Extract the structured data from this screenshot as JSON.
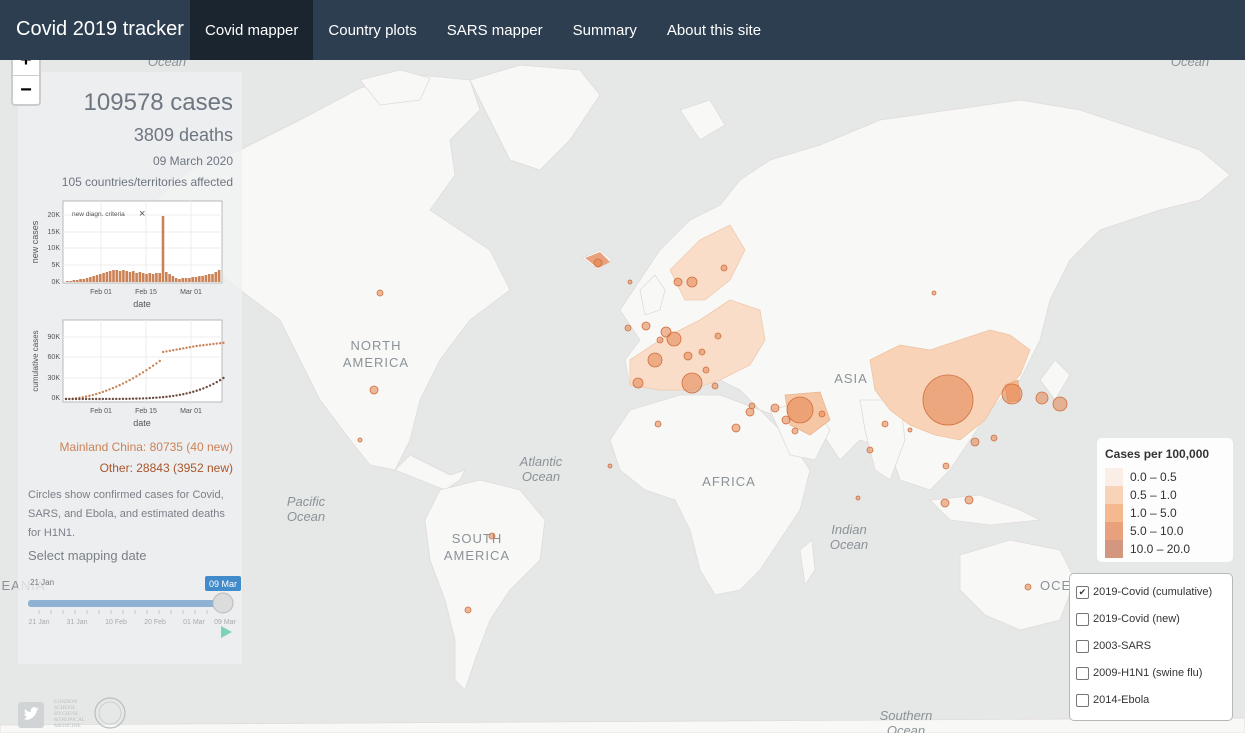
{
  "navbar": {
    "brand": "Covid 2019 tracker",
    "tabs": [
      {
        "label": "Covid mapper",
        "active": true
      },
      {
        "label": "Country plots",
        "active": false
      },
      {
        "label": "SARS mapper",
        "active": false
      },
      {
        "label": "Summary",
        "active": false
      },
      {
        "label": "About this site",
        "active": false
      }
    ]
  },
  "zoom": {
    "in": "+",
    "out": "−"
  },
  "summary": {
    "cases": "109578 cases",
    "deaths": "3809 deaths",
    "date": "09 March 2020",
    "affected": "105 countries/territories affected",
    "china": "Mainland China: 80735 (40 new)",
    "other": "Other: 28843 (3952 new)",
    "description": "Circles show confirmed cases for Covid, SARS, and Ebola, and estimated deaths for H1N1.",
    "select_label": "Select mapping date"
  },
  "new_cases_plot": {
    "annotation": "new diagn. criteria",
    "ylabel": "new cases",
    "xlabel": "date",
    "yticks": [
      "0K",
      "5K",
      "10K",
      "15K",
      "20K"
    ],
    "xticks": [
      "Feb 01",
      "Feb 15",
      "Mar 01"
    ]
  },
  "cumulative_plot": {
    "ylabel": "cumulative cases",
    "xlabel": "date",
    "yticks": [
      "0K",
      "30K",
      "60K",
      "90K"
    ],
    "xticks": [
      "Feb 01",
      "Feb 15",
      "Mar 01"
    ]
  },
  "slider": {
    "min_label": "21 Jan",
    "value_label": "09 Mar",
    "value_fraction": 1.0,
    "ticks": [
      "21 Jan",
      "31 Jan",
      "10 Feb",
      "20 Feb",
      "01 Mar",
      "09 Mar"
    ],
    "play_icon": "play-icon"
  },
  "map": {
    "labels": {
      "north_america": [
        "NORTH",
        "AMERICA"
      ],
      "south_america": [
        "SOUTH",
        "AMERICA"
      ],
      "africa": "AFRICA",
      "asia": "ASIA",
      "oceania": "OCEANIA",
      "atlantic": [
        "Atlantic",
        "Ocean"
      ],
      "pacific": [
        "Pacific",
        "Ocean"
      ],
      "indian": [
        "Indian",
        "Ocean"
      ],
      "southern": [
        "Southern",
        "Ocean"
      ],
      "ocean_tl": "Ocean",
      "ocean_tr": "Ocean"
    }
  },
  "legend": {
    "title": "Cases per 100,000",
    "items": [
      {
        "label": "0.0 – 0.5",
        "color": "#fbeee6"
      },
      {
        "label": "0.5 – 1.0",
        "color": "#f8d3b8"
      },
      {
        "label": "1.0 – 5.0",
        "color": "#f5b990"
      },
      {
        "label": "5.0 – 10.0",
        "color": "#e9a07c"
      },
      {
        "label": "10.0 – 20.0",
        "color": "#d3977f"
      }
    ]
  },
  "layers": [
    {
      "label": "2019-Covid (cumulative)",
      "checked": true
    },
    {
      "label": "2019-Covid (new)",
      "checked": false
    },
    {
      "label": "2003-SARS",
      "checked": false
    },
    {
      "label": "2009-H1N1 (swine flu)",
      "checked": false
    },
    {
      "label": "2014-Ebola",
      "checked": false
    }
  ],
  "footer": {
    "twitter_icon": "twitter-icon",
    "lshtm_logo": [
      "LONDON",
      "SCHOOL",
      "HYGIENE",
      "&TROPICAL",
      "MEDICINE"
    ]
  },
  "colors": {
    "navbar": "#2c3e50",
    "navbar_active": "#1a252f",
    "circle": "#e3834f",
    "land": "#f8f8f7",
    "ocean": "#e6e8e8"
  }
}
